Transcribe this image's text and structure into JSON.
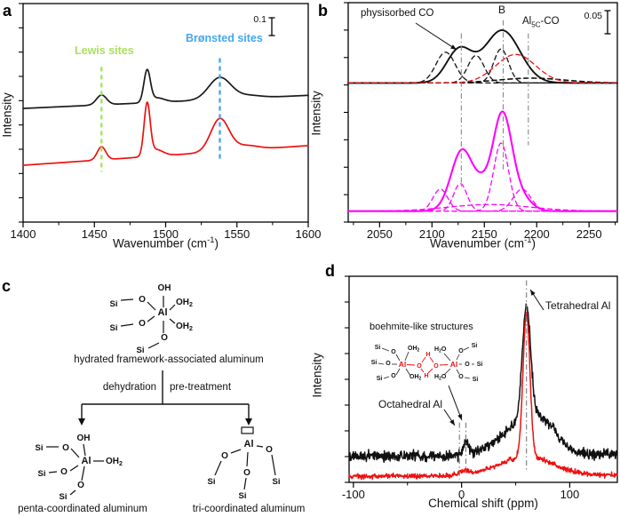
{
  "panel_a": {
    "letter": "a",
    "ylabel": "Intensity",
    "xlabel_main": "Wavenumber (cm",
    "xlabel_sup": "-1",
    "xlabel_end": ")",
    "scale_bar": "0.1",
    "lewis": "Lewis sites",
    "bronsted": "Brønsted sites",
    "colors": {
      "lewis": "#a9e05f",
      "bronsted": "#45a7f0",
      "curve1": "#1a1a1a",
      "curve2": "#ee1111"
    }
  },
  "panel_b": {
    "letter": "b",
    "ylabel": "Intensity",
    "xlabel_main": "Wavenumber (cm",
    "xlabel_sup": "-1",
    "xlabel_end": ")",
    "scale_bar": "0.05",
    "physisorbed": "physisorbed CO",
    "b_site": "B",
    "al5c_main": "Al",
    "al5c_sub": "5C",
    "al5c_rest": "-CO",
    "colors": {
      "spectrum_top": "#111111",
      "spectrum_bottom": "#ff00ff",
      "component_red": "#ee1111"
    }
  },
  "panel_c": {
    "letter": "c",
    "atoms": {
      "si": "Si",
      "o": "O",
      "al": "Al",
      "oh": "OH",
      "oh2_main": "OH",
      "oh2_sub": "2"
    },
    "captions": {
      "top": "hydrated framework-associated aluminum",
      "left": "penta-coordinated aluminum",
      "right": "tri-coordinated aluminum"
    },
    "arrow_labels": {
      "left": "dehydration",
      "right": "pre-treatment"
    }
  },
  "panel_d": {
    "letter": "d",
    "ylabel": "Intensity",
    "xlabel": "Chemical shift (ppm)",
    "tetrahedral": "Tetrahedral Al",
    "octahedral": "Octahedral Al",
    "boehmite": "boehmite-like structures",
    "inset_atoms": {
      "si": "Si",
      "o": "O",
      "al": "Al",
      "h": "H",
      "oh2_main": "OH",
      "oh2_sub": "2",
      "h2o_pre": "H",
      "h2o_sub": "2",
      "h2o_post": "O"
    },
    "colors": {
      "curve1": "#111111",
      "curve2": "#ee1111",
      "structure_red": "#ee1111"
    }
  },
  "chart_data": [
    {
      "id": "panel_a",
      "type": "line",
      "xlabel": "Wavenumber (cm-1)",
      "ylabel": "Intensity",
      "xlim": [
        1400,
        1600
      ],
      "xticks": [
        1400,
        1450,
        1500,
        1550,
        1600
      ],
      "xminor": [
        1425,
        1475,
        1525,
        1575
      ],
      "scale_bar_value": "0.1",
      "markers": [
        {
          "x": 1455,
          "y0": 0.23,
          "y1": 0.71,
          "color": "#a9e05f",
          "style": "dashed"
        },
        {
          "x": 1538,
          "y0": 0.28,
          "y1": 0.75,
          "color": "#45a7f0",
          "style": "dashed"
        }
      ],
      "series": [
        {
          "name": "spectrum-black",
          "color": "#1a1a1a",
          "width": 1.7,
          "base": [
            0.52,
            0.06
          ],
          "peaks": [
            {
              "c": 1455,
              "h": 0.045,
              "w": 5
            },
            {
              "c": 1487,
              "h": 0.145,
              "w": 3.2
            },
            {
              "c": 1494,
              "h": 0.02,
              "w": 7
            },
            {
              "c": 1538,
              "h": 0.1,
              "w": 11
            },
            {
              "c": 1558,
              "h": 0.012,
              "w": 12
            }
          ]
        },
        {
          "name": "spectrum-red",
          "color": "#ee1111",
          "width": 1.7,
          "base": [
            0.26,
            0.09
          ],
          "peaks": [
            {
              "c": 1455,
              "h": 0.06,
              "w": 4.2
            },
            {
              "c": 1487,
              "h": 0.235,
              "w": 3
            },
            {
              "c": 1493,
              "h": 0.03,
              "w": 7
            },
            {
              "c": 1538,
              "h": 0.15,
              "w": 9
            },
            {
              "c": 1556,
              "h": 0.02,
              "w": 12
            }
          ]
        }
      ]
    },
    {
      "id": "panel_b",
      "type": "line",
      "xlabel": "Wavenumber (cm-1)",
      "ylabel": "Intensity",
      "xlim": [
        2020,
        2277
      ],
      "xticks": [
        2050,
        2100,
        2150,
        2200,
        2250
      ],
      "xminor": [
        2025,
        2075,
        2125,
        2175,
        2225,
        2275
      ],
      "scale_bar_value": "0.05",
      "markers": [
        {
          "x": 2128,
          "y0": 0.15,
          "y1": 0.86,
          "color": "#888888",
          "style": "dashdot"
        },
        {
          "x": 2168,
          "y0": 0.24,
          "y1": 0.92,
          "color": "#888888",
          "style": "dashdot"
        },
        {
          "x": 2192,
          "y0": 0.35,
          "y1": 0.86,
          "color": "#888888",
          "style": "dashdot"
        }
      ],
      "series": [
        {
          "name": "spectrum-top",
          "color": "#111111",
          "width": 1.9,
          "base": [
            0.634,
            0
          ],
          "peaks": [
            {
              "c": 2126,
              "h": 0.15,
              "w": 17
            },
            {
              "c": 2167,
              "h": 0.24,
              "w": 24
            }
          ]
        },
        {
          "name": "top-comp-1",
          "color": "#111111",
          "width": 1.3,
          "dash": "5,4",
          "base": [
            0.634,
            0
          ],
          "peaks": [
            {
              "c": 2113,
              "h": 0.14,
              "w": 13
            }
          ]
        },
        {
          "name": "top-comp-2",
          "color": "#111111",
          "width": 1.3,
          "dash": "5,4",
          "base": [
            0.634,
            0
          ],
          "peaks": [
            {
              "c": 2142,
              "h": 0.125,
              "w": 11
            }
          ]
        },
        {
          "name": "top-comp-3",
          "color": "#111111",
          "width": 1.3,
          "dash": "5,4",
          "base": [
            0.634,
            0
          ],
          "peaks": [
            {
              "c": 2166,
              "h": 0.155,
              "w": 10
            }
          ]
        },
        {
          "name": "top-comp-4",
          "color": "#111111",
          "width": 1.6,
          "dash": "5,4",
          "base": [
            0.634,
            0
          ],
          "peaks": [
            {
              "c": 2195,
              "h": 0.022,
              "w": 45
            }
          ]
        },
        {
          "name": "top-comp-red",
          "color": "#ee1111",
          "width": 1.3,
          "dash": "5,4",
          "base": [
            0.634,
            0
          ],
          "peaks": [
            {
              "c": 2180,
              "h": 0.13,
              "w": 27
            }
          ]
        },
        {
          "name": "spectrum-bottom",
          "color": "#ff00ff",
          "width": 2.1,
          "base": [
            0.05,
            0
          ],
          "peaks": [
            {
              "c": 2129,
              "h": 0.28,
              "w": 15
            },
            {
              "c": 2148,
              "h": 0.07,
              "w": 10
            },
            {
              "c": 2167,
              "h": 0.44,
              "w": 13
            },
            {
              "c": 2185,
              "h": 0.06,
              "w": 14
            }
          ]
        },
        {
          "name": "bot-comp-1",
          "color": "#ff00ff",
          "width": 1.3,
          "dash": "5,4",
          "base": [
            0.05,
            0
          ],
          "peaks": [
            {
              "c": 2108,
              "h": 0.1,
              "w": 10
            }
          ]
        },
        {
          "name": "bot-comp-2",
          "color": "#ff00ff",
          "width": 1.3,
          "dash": "5,4",
          "base": [
            0.05,
            0
          ],
          "peaks": [
            {
              "c": 2127,
              "h": 0.125,
              "w": 9
            }
          ]
        },
        {
          "name": "bot-comp-3",
          "color": "#ff00ff",
          "width": 1.3,
          "dash": "5,4",
          "base": [
            0.05,
            0
          ],
          "peaks": [
            {
              "c": 2166,
              "h": 0.31,
              "w": 10
            }
          ]
        },
        {
          "name": "bot-comp-4",
          "color": "#ff00ff",
          "width": 1.3,
          "dash": "5,4",
          "base": [
            0.05,
            0
          ],
          "peaks": [
            {
              "c": 2186,
              "h": 0.1,
              "w": 12
            }
          ]
        },
        {
          "name": "bot-comp-5",
          "color": "#ff00ff",
          "width": 1.3,
          "dash": "5,4",
          "base": [
            0.05,
            0
          ],
          "peaks": [
            {
              "c": 2155,
              "h": 0.03,
              "w": 55
            }
          ]
        }
      ]
    },
    {
      "id": "panel_d",
      "type": "line",
      "xlabel": "Chemical shift (ppm)",
      "ylabel": "Intensity",
      "xlim": [
        -104,
        144
      ],
      "xticks": [
        -100,
        0,
        100
      ],
      "xminor": [
        -50,
        50
      ],
      "markers": [
        {
          "x": 60,
          "y0": 0.06,
          "y1": 0.98,
          "color": "#777777",
          "style": "dashdot"
        },
        {
          "x": -2,
          "y0": 0.015,
          "y1": 0.29,
          "color": "#777777",
          "style": "dashdot"
        },
        {
          "x": 4,
          "y0": 0.045,
          "y1": 0.29,
          "color": "#777777",
          "style": "dashdot"
        }
      ],
      "series": [
        {
          "name": "spectrum-black",
          "color": "#111111",
          "width": 1.5,
          "base": [
            0.125,
            0.01
          ],
          "noise": 0.012,
          "seed": 7,
          "peaks": [
            {
              "c": 60,
              "h": 0.55,
              "w": 5.5
            },
            {
              "c": 58,
              "h": 0.155,
              "w": 30
            },
            {
              "c": 78,
              "h": 0.07,
              "w": 16
            },
            {
              "c": 4,
              "h": 0.06,
              "w": 4
            }
          ]
        },
        {
          "name": "spectrum-red",
          "color": "#ee1111",
          "width": 1.5,
          "base": [
            0.03,
            0.005
          ],
          "noise": 0.006,
          "seed": 13,
          "peaks": [
            {
              "c": 60,
              "h": 0.7,
              "w": 4.5
            },
            {
              "c": 60,
              "h": 0.09,
              "w": 35
            },
            {
              "c": 3,
              "h": 0.02,
              "w": 6
            }
          ]
        }
      ]
    }
  ]
}
